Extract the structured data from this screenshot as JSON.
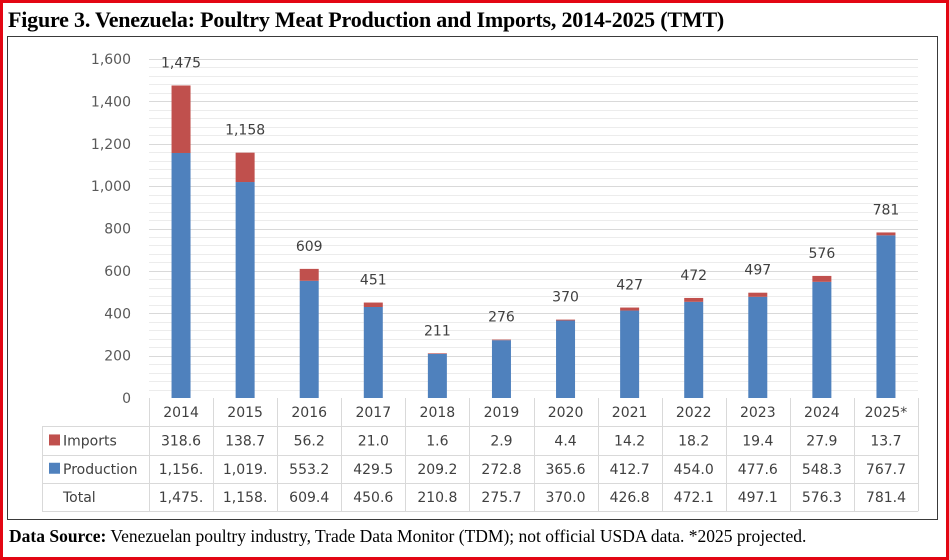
{
  "figure": {
    "title": "Figure 3. Venezuela: Poultry Meat Production and Imports, 2014-2025 (TMT)",
    "source_label": "Data Source:",
    "source_text": " Venezuelan poultry industry, Trade Data Monitor (TDM); not official USDA data. *2025 projected.",
    "frame_color": "#e30613"
  },
  "chart_data": {
    "type": "bar",
    "stacked": true,
    "title": "Venezuela: Poultry Meat Production and Imports, 2014-2025 (TMT)",
    "xlabel": "",
    "ylabel": "",
    "ylim": [
      0,
      1600
    ],
    "yticks": [
      0,
      200,
      400,
      600,
      800,
      1000,
      1200,
      1400,
      1600
    ],
    "ytick_labels": [
      "0",
      "200",
      "400",
      "600",
      "800",
      "1,000",
      "1,200",
      "1,400",
      "1,600"
    ],
    "minor_grid_step": 40,
    "grid": true,
    "legend": "data-table",
    "categories": [
      "2014",
      "2015",
      "2016",
      "2017",
      "2018",
      "2019",
      "2020",
      "2021",
      "2022",
      "2023",
      "2024",
      "2025*"
    ],
    "series": [
      {
        "name": "Production",
        "color": "#4f81bd",
        "values": [
          1156.4,
          1019.3,
          553.2,
          429.5,
          209.2,
          272.8,
          365.6,
          412.7,
          454.0,
          477.6,
          548.3,
          767.7
        ],
        "table_labels": [
          "1,156.",
          "1,019.",
          "553.2",
          "429.5",
          "209.2",
          "272.8",
          "365.6",
          "412.7",
          "454.0",
          "477.6",
          "548.3",
          "767.7"
        ]
      },
      {
        "name": "Imports",
        "color": "#c0504d",
        "values": [
          318.6,
          138.7,
          56.2,
          21.0,
          1.6,
          2.9,
          4.4,
          14.2,
          18.2,
          19.4,
          27.9,
          13.7
        ],
        "table_labels": [
          "318.6",
          "138.7",
          "56.2",
          "21.0",
          "1.6",
          "2.9",
          "4.4",
          "14.2",
          "18.2",
          "19.4",
          "27.9",
          "13.7"
        ]
      }
    ],
    "totals": {
      "name": "Total",
      "values": [
        1475.0,
        1158.0,
        609.4,
        450.6,
        210.8,
        275.7,
        370.0,
        426.8,
        472.1,
        497.1,
        576.3,
        781.4
      ],
      "table_labels": [
        "1,475.",
        "1,158.",
        "609.4",
        "450.6",
        "210.8",
        "275.7",
        "370.0",
        "426.8",
        "472.1",
        "497.1",
        "576.3",
        "781.4"
      ],
      "bar_labels": [
        "1,475",
        "1,158",
        "609",
        "451",
        "211",
        "276",
        "370",
        "427",
        "472",
        "497",
        "576",
        "781"
      ]
    },
    "table_row_order": [
      "Imports",
      "Production",
      "Total"
    ]
  }
}
